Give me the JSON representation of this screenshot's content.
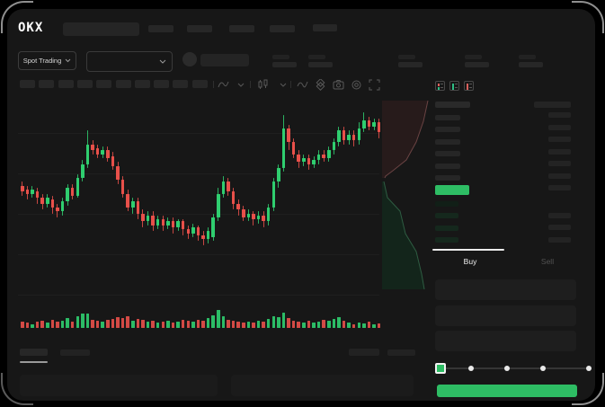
{
  "app": {
    "logo_text": "OKX"
  },
  "header": {
    "nav_skeleton_count": 4,
    "market_selector_label": "Spot Trading",
    "stat_pairs_count": 5
  },
  "toolbar": {
    "skeleton_count": 10,
    "icons": [
      "line-type-icon",
      "chevron-down-icon",
      "candle-type-icon",
      "chevron-down-icon",
      "indicator-icon",
      "compare-icon",
      "camera-icon",
      "settings-icon",
      "fullscreen-icon"
    ]
  },
  "order_book": {
    "view_icons": [
      "book-combined-icon",
      "book-bids-icon",
      "book-asks-icon"
    ],
    "ask_rows": 6,
    "ask_amount_rows": 7,
    "bid_rows": 4,
    "bid_amount_rows": 3
  },
  "trade_panel": {
    "buy_tab_label": "Buy",
    "sell_tab_label": "Sell",
    "field_count": 3,
    "slider_stop_fractions": [
      0,
      0.21,
      0.45,
      0.69,
      1
    ],
    "slider_value_index": 0
  },
  "colors": {
    "up": "#2fce6f",
    "down": "#e8504a",
    "accent_green": "#2ebd64",
    "bid_row": "#15281d",
    "bid_row_dim": "#111f17",
    "ask_row": "#262626",
    "amount_row": "#232323"
  },
  "chart_data": [
    {
      "type": "candlestick",
      "title": "",
      "note": "no axis labels visible; prices normalized 0-100",
      "ylim": [
        0,
        100
      ],
      "up_color": "#2fce6f",
      "down_color": "#e8504a",
      "candles_ohlc": [
        [
          56,
          58,
          51,
          53
        ],
        [
          54,
          56,
          49,
          52
        ],
        [
          52,
          56,
          50,
          54
        ],
        [
          53,
          55,
          47,
          50
        ],
        [
          50,
          52,
          44,
          47
        ],
        [
          47,
          52,
          45,
          50
        ],
        [
          49,
          51,
          42,
          45
        ],
        [
          45,
          47,
          40,
          43
        ],
        [
          43,
          50,
          41,
          48
        ],
        [
          48,
          57,
          46,
          55
        ],
        [
          55,
          57,
          49,
          51
        ],
        [
          51,
          62,
          50,
          60
        ],
        [
          60,
          69,
          58,
          67
        ],
        [
          67,
          84,
          65,
          77
        ],
        [
          77,
          79,
          72,
          74
        ],
        [
          75,
          77,
          70,
          72
        ],
        [
          72,
          76,
          70,
          74
        ],
        [
          74,
          76,
          68,
          70
        ],
        [
          71,
          73,
          64,
          66
        ],
        [
          66,
          68,
          57,
          59
        ],
        [
          59,
          61,
          50,
          52
        ],
        [
          52,
          54,
          43,
          45
        ],
        [
          45,
          50,
          42,
          48
        ],
        [
          48,
          50,
          39,
          42
        ],
        [
          42,
          44,
          35,
          38
        ],
        [
          38,
          43,
          36,
          41
        ],
        [
          41,
          43,
          33,
          36
        ],
        [
          36,
          41,
          34,
          39
        ],
        [
          39,
          41,
          33,
          36
        ],
        [
          36,
          40,
          34,
          38
        ],
        [
          38,
          40,
          32,
          35
        ],
        [
          35,
          39,
          33,
          38
        ],
        [
          38,
          39,
          31,
          34
        ],
        [
          34,
          36,
          29,
          32
        ],
        [
          32,
          37,
          30,
          35
        ],
        [
          35,
          36,
          28,
          31
        ],
        [
          31,
          33,
          26,
          29
        ],
        [
          29,
          35,
          27,
          33
        ],
        [
          30,
          42,
          28,
          40
        ],
        [
          40,
          55,
          38,
          52
        ],
        [
          52,
          61,
          50,
          58
        ],
        [
          58,
          60,
          51,
          53
        ],
        [
          53,
          55,
          44,
          47
        ],
        [
          47,
          49,
          41,
          44
        ],
        [
          44,
          46,
          38,
          40
        ],
        [
          40,
          44,
          38,
          42
        ],
        [
          42,
          43,
          36,
          39
        ],
        [
          39,
          43,
          37,
          41
        ],
        [
          41,
          43,
          35,
          38
        ],
        [
          38,
          47,
          36,
          45
        ],
        [
          45,
          60,
          43,
          58
        ],
        [
          58,
          67,
          55,
          65
        ],
        [
          65,
          92,
          63,
          85
        ],
        [
          85,
          87,
          74,
          78
        ],
        [
          78,
          80,
          70,
          72
        ],
        [
          72,
          74,
          65,
          68
        ],
        [
          68,
          72,
          66,
          70
        ],
        [
          70,
          72,
          64,
          67
        ],
        [
          67,
          71,
          65,
          69
        ],
        [
          69,
          74,
          67,
          72
        ],
        [
          72,
          74,
          68,
          70
        ],
        [
          70,
          76,
          68,
          74
        ],
        [
          74,
          80,
          72,
          78
        ],
        [
          78,
          86,
          76,
          84
        ],
        [
          84,
          86,
          77,
          79
        ],
        [
          79,
          84,
          77,
          82
        ],
        [
          82,
          84,
          76,
          79
        ],
        [
          79,
          88,
          77,
          85
        ],
        [
          85,
          93,
          83,
          89
        ],
        [
          89,
          91,
          84,
          86
        ],
        [
          86,
          90,
          84,
          88
        ],
        [
          88,
          90,
          80,
          83
        ]
      ]
    },
    {
      "type": "bar",
      "title": "volume",
      "values": [
        7,
        6,
        4,
        7,
        8,
        6,
        9,
        7,
        8,
        11,
        7,
        13,
        16,
        16,
        9,
        8,
        7,
        9,
        10,
        12,
        11,
        13,
        8,
        10,
        9,
        7,
        8,
        6,
        7,
        8,
        6,
        7,
        9,
        8,
        7,
        9,
        8,
        11,
        14,
        20,
        13,
        9,
        8,
        7,
        6,
        7,
        6,
        8,
        7,
        10,
        13,
        12,
        17,
        11,
        8,
        7,
        6,
        8,
        6,
        7,
        9,
        8,
        10,
        12,
        8,
        6,
        4,
        6,
        5,
        7,
        4,
        5
      ],
      "color_rule": "matches candle direction"
    },
    {
      "type": "area",
      "title": "depth",
      "ask_fill": "#271b1b",
      "ask_line": "#6a4343",
      "bid_fill": "#13251b",
      "bid_line": "#2e5c42",
      "ask_curve": [
        [
          51,
          2
        ],
        [
          46,
          25
        ],
        [
          38,
          48
        ],
        [
          27,
          68
        ],
        [
          12,
          80
        ],
        [
          4,
          86
        ],
        [
          3,
          88
        ]
      ],
      "bid_curve": [
        [
          2,
          92
        ],
        [
          6,
          110
        ],
        [
          20,
          125
        ],
        [
          26,
          150
        ],
        [
          38,
          170
        ],
        [
          44,
          195
        ],
        [
          47,
          212
        ]
      ]
    }
  ]
}
